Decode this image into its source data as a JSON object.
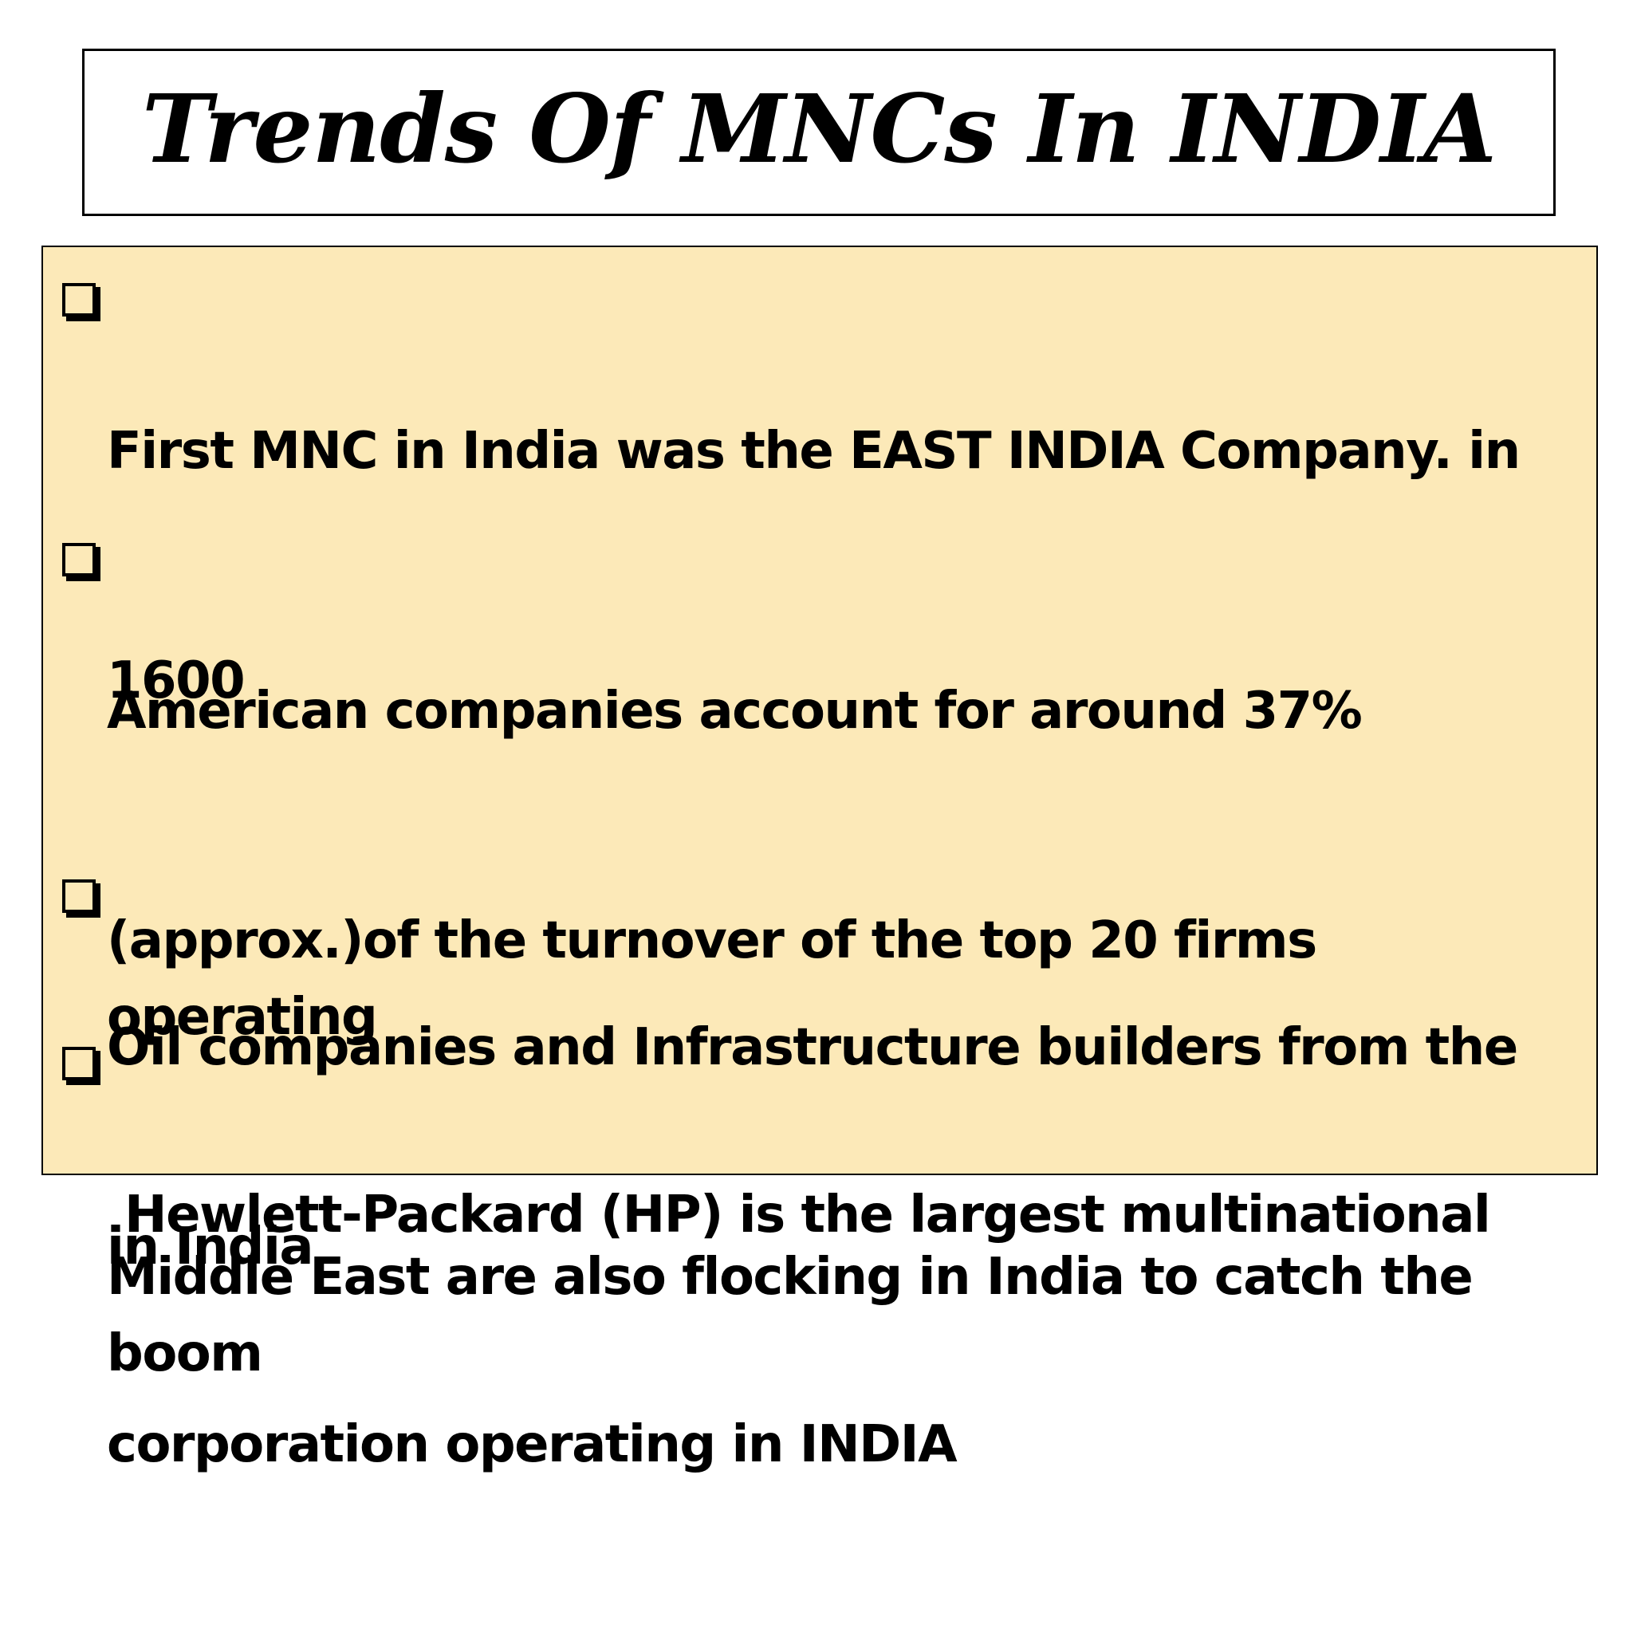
{
  "slide": {
    "title": "Trends Of MNCs In INDIA",
    "bullets": [
      {
        "line1": "First MNC in India was the EAST INDIA Company. in",
        "line2": "1600"
      },
      {
        "line1": "American companies account for around 37%",
        "line2": "(approx.)of the turnover of the top 20 firms operating",
        "line3": "in India"
      },
      {
        "line1": "Oil companies and Infrastructure builders from the",
        "line2": "Middle East are also flocking in India to catch the boom"
      },
      {
        "line1": "Hewlett-Packard (HP) is the largest multinational",
        "line2": "corporation operating in INDIA"
      }
    ]
  },
  "colors": {
    "content_background": "#fce9b8",
    "border": "#000000",
    "text": "#000000"
  },
  "icons": {
    "bullet": "checkbox-bullet-icon"
  }
}
